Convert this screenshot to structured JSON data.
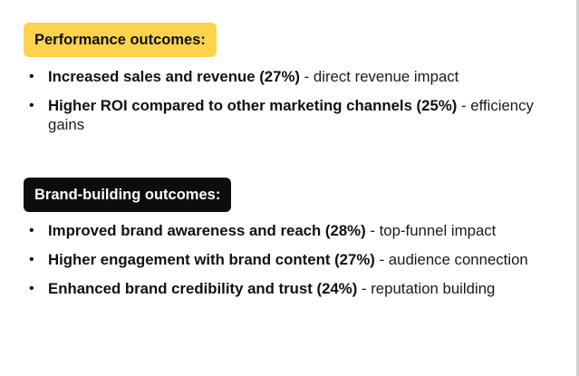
{
  "sections": [
    {
      "heading": "Performance outcomes:",
      "accent": "#fcd34d",
      "items": [
        {
          "main": "Increased sales and revenue (27%)",
          "note": "direct revenue impact"
        },
        {
          "main": "Higher ROI compared to other marketing channels (25%)",
          "note": "efficiency gains"
        }
      ]
    },
    {
      "heading": "Brand-building outcomes:",
      "accent": "#0d0d0d",
      "items": [
        {
          "main": "Improved brand awareness and reach (28%)",
          "note": "top-funnel impact"
        },
        {
          "main": "Higher engagement with brand content (27%)",
          "note": "audience connection"
        },
        {
          "main": "Enhanced brand credibility and trust (24%)",
          "note": "reputation building"
        }
      ]
    }
  ],
  "separator": " -",
  "bullet_char": "•"
}
